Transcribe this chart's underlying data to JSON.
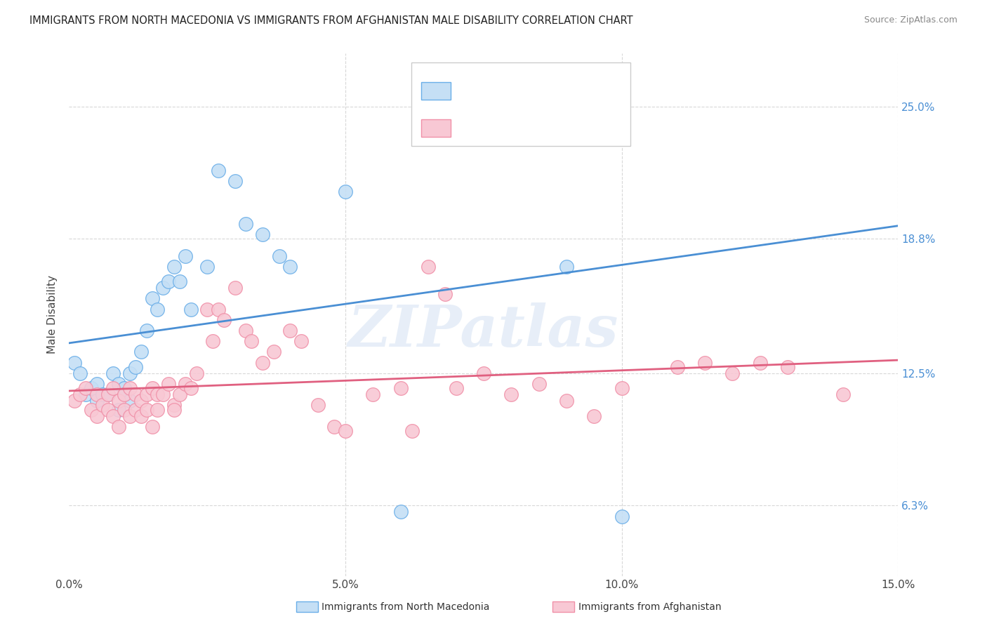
{
  "title": "IMMIGRANTS FROM NORTH MACEDONIA VS IMMIGRANTS FROM AFGHANISTAN MALE DISABILITY CORRELATION CHART",
  "source": "Source: ZipAtlas.com",
  "ylabel": "Male Disability",
  "ytick_labels": [
    "6.3%",
    "12.5%",
    "18.8%",
    "25.0%"
  ],
  "ytick_values": [
    0.063,
    0.125,
    0.188,
    0.25
  ],
  "xlim": [
    0.0,
    0.15
  ],
  "ylim": [
    0.03,
    0.275
  ],
  "watermark": "ZIPatlas",
  "blue_fill": "#c5dff5",
  "pink_fill": "#f8c8d4",
  "blue_edge": "#6aaee8",
  "pink_edge": "#f090a8",
  "blue_line": "#4a8fd4",
  "pink_line": "#e06080",
  "background_color": "#ffffff",
  "grid_color": "#d8d8d8",
  "nm_x": [
    0.001,
    0.002,
    0.003,
    0.004,
    0.005,
    0.005,
    0.006,
    0.007,
    0.008,
    0.009,
    0.009,
    0.01,
    0.01,
    0.011,
    0.011,
    0.012,
    0.013,
    0.014,
    0.015,
    0.016,
    0.017,
    0.018,
    0.019,
    0.02,
    0.021,
    0.022,
    0.025,
    0.027,
    0.03,
    0.032,
    0.035,
    0.038,
    0.04,
    0.05,
    0.06,
    0.065,
    0.09,
    0.1
  ],
  "nm_y": [
    0.13,
    0.125,
    0.115,
    0.118,
    0.12,
    0.112,
    0.115,
    0.115,
    0.125,
    0.12,
    0.108,
    0.118,
    0.115,
    0.125,
    0.112,
    0.128,
    0.135,
    0.145,
    0.16,
    0.155,
    0.165,
    0.168,
    0.175,
    0.168,
    0.18,
    0.155,
    0.175,
    0.22,
    0.215,
    0.195,
    0.19,
    0.18,
    0.175,
    0.21,
    0.06,
    0.25,
    0.175,
    0.058
  ],
  "af_x": [
    0.001,
    0.002,
    0.003,
    0.004,
    0.005,
    0.005,
    0.006,
    0.007,
    0.007,
    0.008,
    0.008,
    0.009,
    0.009,
    0.01,
    0.01,
    0.011,
    0.011,
    0.012,
    0.012,
    0.013,
    0.013,
    0.014,
    0.014,
    0.015,
    0.015,
    0.016,
    0.016,
    0.017,
    0.018,
    0.019,
    0.019,
    0.02,
    0.021,
    0.022,
    0.023,
    0.025,
    0.026,
    0.027,
    0.028,
    0.03,
    0.032,
    0.033,
    0.035,
    0.037,
    0.04,
    0.042,
    0.045,
    0.048,
    0.05,
    0.055,
    0.06,
    0.062,
    0.065,
    0.068,
    0.07,
    0.075,
    0.08,
    0.085,
    0.09,
    0.095,
    0.1,
    0.11,
    0.115,
    0.12,
    0.125,
    0.13,
    0.14
  ],
  "af_y": [
    0.112,
    0.115,
    0.118,
    0.108,
    0.115,
    0.105,
    0.11,
    0.115,
    0.108,
    0.118,
    0.105,
    0.112,
    0.1,
    0.115,
    0.108,
    0.118,
    0.105,
    0.115,
    0.108,
    0.112,
    0.105,
    0.115,
    0.108,
    0.118,
    0.1,
    0.115,
    0.108,
    0.115,
    0.12,
    0.11,
    0.108,
    0.115,
    0.12,
    0.118,
    0.125,
    0.155,
    0.14,
    0.155,
    0.15,
    0.165,
    0.145,
    0.14,
    0.13,
    0.135,
    0.145,
    0.14,
    0.11,
    0.1,
    0.098,
    0.115,
    0.118,
    0.098,
    0.175,
    0.162,
    0.118,
    0.125,
    0.115,
    0.12,
    0.112,
    0.105,
    0.118,
    0.128,
    0.13,
    0.125,
    0.13,
    0.128,
    0.115
  ],
  "bottom_label_blue": "Immigrants from North Macedonia",
  "bottom_label_pink": "Immigrants from Afghanistan"
}
